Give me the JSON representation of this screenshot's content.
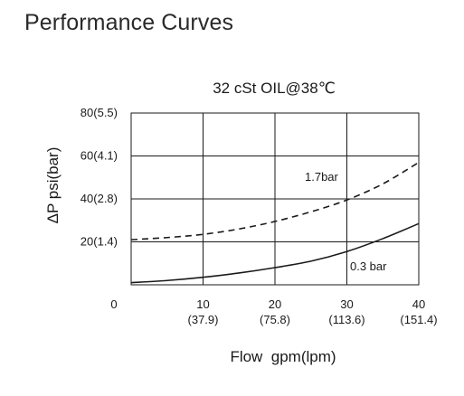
{
  "page": {
    "heading": "Performance Curves"
  },
  "chart_data": {
    "type": "line",
    "title": "32 cSt OIL@38℃",
    "xlabel": "Flow  gpm(lpm)",
    "ylabel": "ΔP psi(bar)",
    "xlim": [
      0,
      40
    ],
    "ylim": [
      0,
      80
    ],
    "grid": true,
    "x_ticks": [
      {
        "value": 0,
        "label": "0",
        "sublabel": ""
      },
      {
        "value": 10,
        "label": "10",
        "sublabel": "(37.9)"
      },
      {
        "value": 20,
        "label": "20",
        "sublabel": "(75.8)"
      },
      {
        "value": 30,
        "label": "30",
        "sublabel": "(113.6)"
      },
      {
        "value": 40,
        "label": "40",
        "sublabel": "(151.4)"
      }
    ],
    "y_ticks": [
      {
        "value": 20,
        "label": "20(1.4)"
      },
      {
        "value": 40,
        "label": "40(2.8)"
      },
      {
        "value": 60,
        "label": "60(4.1)"
      },
      {
        "value": 80,
        "label": "80(5.5)"
      }
    ],
    "series": [
      {
        "name": "1.7bar",
        "style": "dashed",
        "color": "#1a1a1a",
        "x": [
          0,
          5,
          10,
          15,
          20,
          25,
          30,
          35,
          40
        ],
        "y": [
          21,
          22,
          23.5,
          26,
          29.5,
          34,
          39.5,
          47,
          57
        ]
      },
      {
        "name": "0.3 bar",
        "style": "solid",
        "color": "#1a1a1a",
        "x": [
          0,
          5,
          10,
          15,
          20,
          25,
          30,
          35,
          40
        ],
        "y": [
          1,
          2,
          3.5,
          5.5,
          8,
          11,
          15.5,
          21.5,
          28.5
        ]
      }
    ]
  }
}
